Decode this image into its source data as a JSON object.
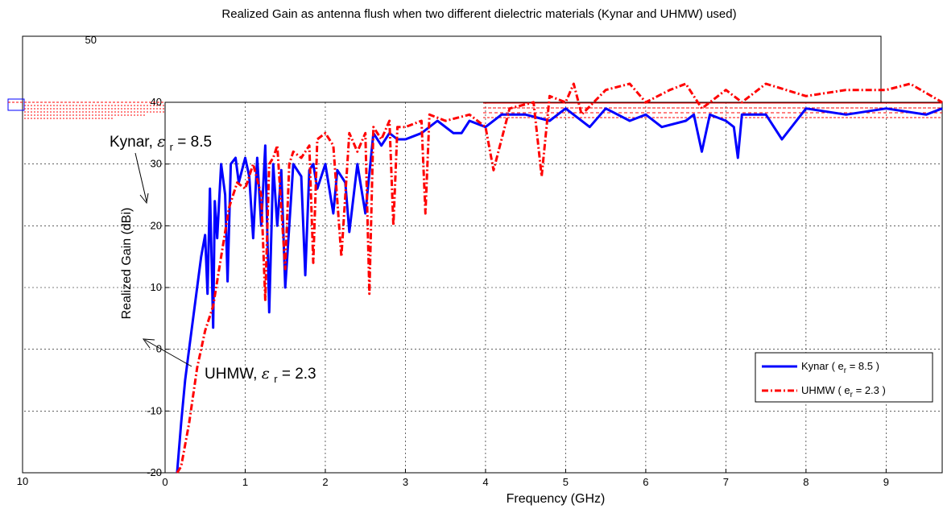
{
  "chart_data": {
    "type": "line",
    "title": "Realized Gain as antenna flush when two different dielectric materials (Kynar and UHMW) used)",
    "xlabel": "Frequency (GHz)",
    "ylabel": "Realized Gain (dBi)",
    "xlim": [
      0,
      9.7
    ],
    "ylim": [
      -20,
      40
    ],
    "xticks": [
      "0",
      "1",
      "2",
      "3",
      "4",
      "5",
      "6",
      "7",
      "8",
      "9"
    ],
    "yticks": [
      "-20",
      "-10",
      "0",
      "10",
      "20",
      "30",
      "40"
    ],
    "grid": true,
    "legend_position": "lower-right",
    "back_axis_ticks": {
      "top_left": "50",
      "bottom_left": "10"
    },
    "annotations": {
      "kynar": {
        "name": "Kynar,",
        "symbol": "ε",
        "sub": "r",
        "value": " = 8.5"
      },
      "uhmw": {
        "name": "UHMW,",
        "symbol": "ε",
        "sub": "r",
        "value": " = 2.3"
      }
    },
    "series": [
      {
        "name": "Kynar ( e",
        "legend_sub": "r",
        "legend_tail": " = 8.5 )",
        "color": "#0000ff",
        "style": "solid",
        "x": [
          0.15,
          0.2,
          0.25,
          0.3,
          0.35,
          0.4,
          0.45,
          0.5,
          0.53,
          0.56,
          0.6,
          0.62,
          0.65,
          0.7,
          0.75,
          0.78,
          0.82,
          0.88,
          0.92,
          0.96,
          1.0,
          1.05,
          1.1,
          1.15,
          1.2,
          1.25,
          1.3,
          1.35,
          1.4,
          1.45,
          1.5,
          1.6,
          1.7,
          1.75,
          1.8,
          1.85,
          1.9,
          2.0,
          2.1,
          2.15,
          2.25,
          2.3,
          2.4,
          2.5,
          2.6,
          2.7,
          2.8,
          2.9,
          3.0,
          3.2,
          3.4,
          3.6,
          3.7,
          3.8,
          4.0,
          4.2,
          4.5,
          4.8,
          5.0,
          5.3,
          5.5,
          5.8,
          6.0,
          6.2,
          6.5,
          6.6,
          6.7,
          6.8,
          7.0,
          7.1,
          7.15,
          7.2,
          7.5,
          7.7,
          8.0,
          8.5,
          9.0,
          9.5,
          9.7
        ],
        "y": [
          -20,
          -12,
          -5,
          0,
          5,
          10,
          15,
          18.5,
          9,
          26,
          3.5,
          24,
          18,
          30,
          25,
          11,
          30,
          31,
          27,
          29,
          31,
          28,
          18,
          31,
          20,
          33,
          6,
          30,
          20,
          29,
          10,
          30,
          28,
          12,
          29,
          30,
          26,
          30,
          22,
          29,
          27,
          19,
          30,
          22,
          35,
          33,
          35,
          34,
          34,
          35,
          37,
          35,
          35,
          37,
          36,
          38,
          38,
          37,
          39,
          36,
          39,
          37,
          38,
          36,
          37,
          38,
          32,
          38,
          37,
          36,
          31,
          38,
          38,
          34,
          39,
          38,
          39,
          38,
          39
        ]
      },
      {
        "name": "UHMW ( e",
        "legend_sub": "r",
        "legend_tail": " = 2.3 )",
        "color": "#ff0000",
        "style": "dashdot",
        "x": [
          0.15,
          0.2,
          0.3,
          0.4,
          0.5,
          0.6,
          0.7,
          0.8,
          0.9,
          1.0,
          1.1,
          1.2,
          1.25,
          1.3,
          1.35,
          1.4,
          1.5,
          1.55,
          1.6,
          1.7,
          1.8,
          1.85,
          1.9,
          2.0,
          2.1,
          2.2,
          2.3,
          2.4,
          2.5,
          2.55,
          2.6,
          2.7,
          2.8,
          2.85,
          2.9,
          3.0,
          3.2,
          3.25,
          3.3,
          3.5,
          3.8,
          4.0,
          4.1,
          4.3,
          4.6,
          4.7,
          4.8,
          5.0,
          5.1,
          5.2,
          5.5,
          5.8,
          6.0,
          6.3,
          6.5,
          6.7,
          7.0,
          7.2,
          7.5,
          8.0,
          8.5,
          9.0,
          9.3,
          9.7
        ],
        "y": [
          -20,
          -19,
          -12,
          -3,
          3,
          7,
          15,
          23,
          27,
          26,
          30,
          25,
          8,
          30,
          31,
          33,
          13,
          30,
          32,
          31,
          33,
          14,
          34,
          35,
          33,
          15,
          35,
          32,
          35,
          9,
          36,
          34,
          37,
          20,
          36,
          36,
          37,
          22,
          38,
          37,
          38,
          36,
          29,
          39,
          40,
          28,
          41,
          40,
          43,
          38,
          42,
          43,
          40,
          42,
          43,
          39,
          42,
          40,
          43,
          41,
          42,
          42,
          43,
          40
        ]
      }
    ]
  }
}
